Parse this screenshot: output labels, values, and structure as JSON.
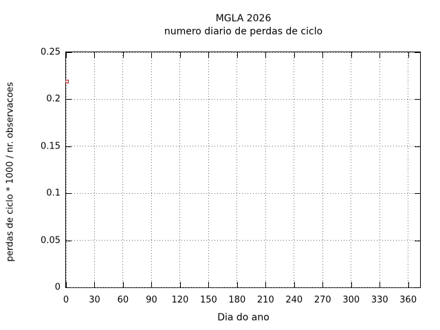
{
  "chart_data": {
    "type": "scatter",
    "title": "MGLA 2026",
    "subtitle": "numero diario de perdas de ciclo",
    "xlabel": "Dia do ano",
    "ylabel": "perdas de ciclo * 1000 / nr. observacoes",
    "xlim": [
      0,
      372.5
    ],
    "ylim": [
      0,
      0.25
    ],
    "xticks": {
      "values": [
        0,
        30,
        60,
        90,
        120,
        150,
        180,
        210,
        240,
        270,
        300,
        330,
        360
      ],
      "labels": [
        "0",
        "30",
        "60",
        "90",
        "120",
        "150",
        "180",
        "210",
        "240",
        "270",
        "300",
        "330",
        "360"
      ]
    },
    "yticks": {
      "values": [
        0,
        0.05,
        0.1,
        0.15,
        0.2,
        0.25
      ],
      "labels": [
        "0",
        "0.05",
        "0.1",
        "0.15",
        "0.2",
        "0.25"
      ]
    },
    "grid": true,
    "grid_style": "dotted",
    "legend": "none",
    "series": [
      {
        "marker": "open-square",
        "color": "#ff0000",
        "points": [
          {
            "x": 1,
            "y": 0.219
          }
        ]
      }
    ]
  },
  "colors": {
    "background": "#ffffff",
    "border": "#000000",
    "text": "#000000",
    "grid": "#666666",
    "marker": "#ff0000"
  }
}
